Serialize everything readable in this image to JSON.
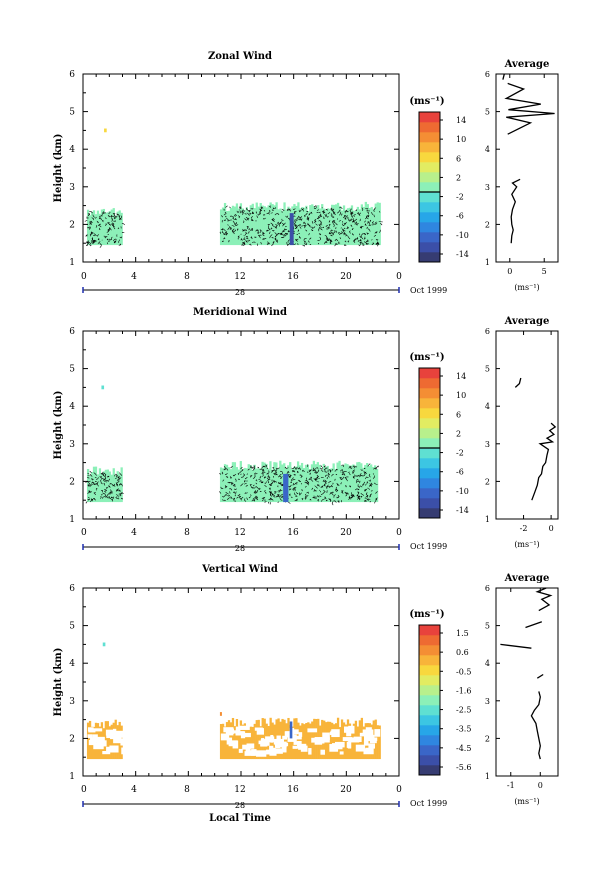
{
  "chart_data": [
    {
      "type": "heatmap",
      "title": "Zonal Wind",
      "ylabel": "Height (km)",
      "ylim": [
        1,
        6
      ],
      "y_ticks": [
        "1",
        "2",
        "3",
        "4",
        "5",
        "6"
      ],
      "xlim": [
        0,
        24
      ],
      "x_ticks": [
        "0",
        "4",
        "8",
        "12",
        "16",
        "20",
        "0"
      ],
      "date_day": "28",
      "date_month": "Oct 1999",
      "colorbar": {
        "unit": "(ms⁻¹)",
        "levels": [
          -14,
          -12,
          -10,
          -8,
          -6,
          -4,
          -2,
          0,
          2,
          4,
          6,
          8,
          10,
          12,
          14,
          16
        ],
        "tick_labels": [
          "14",
          "10",
          "6",
          "2",
          "-2",
          "-6",
          "-10",
          "-14"
        ]
      },
      "data_blocks": [
        {
          "t": [
            0.3,
            3.0
          ],
          "h": [
            1.45,
            2.45
          ],
          "value": 0
        },
        {
          "t": [
            10.4,
            22.6
          ],
          "h": [
            1.45,
            2.6
          ],
          "value": 0
        },
        {
          "t": [
            15.7,
            16.0
          ],
          "h": [
            1.45,
            2.3
          ],
          "value": -11
        },
        {
          "t": [
            1.6,
            1.8
          ],
          "h": [
            4.45,
            4.55
          ],
          "value": 6
        }
      ],
      "average_profile": {
        "title": "Average",
        "xlabel": "(ms⁻¹)",
        "xlim": [
          -2,
          7
        ],
        "x_ticks": [
          "0",
          "5"
        ],
        "ylim": [
          1,
          6
        ],
        "y_ticks": [
          "1",
          "2",
          "3",
          "4",
          "5",
          "6"
        ],
        "segments": [
          [
            [
              0.2,
              1.5
            ],
            [
              0.3,
              1.7
            ],
            [
              0.5,
              1.85
            ],
            [
              0.3,
              2.0
            ],
            [
              0.2,
              2.2
            ],
            [
              0.4,
              2.4
            ],
            [
              0.8,
              2.6
            ],
            [
              0.3,
              2.8
            ],
            [
              1.0,
              3.0
            ],
            [
              0.4,
              3.1
            ],
            [
              1.5,
              3.2
            ]
          ],
          [
            [
              -0.3,
              4.4
            ],
            [
              3.0,
              4.7
            ],
            [
              -0.5,
              4.85
            ],
            [
              6.5,
              4.95
            ],
            [
              -0.2,
              5.05
            ],
            [
              4.5,
              5.2
            ],
            [
              -0.5,
              5.35
            ],
            [
              2.0,
              5.6
            ],
            [
              -0.3,
              5.75
            ]
          ],
          [
            [
              -1.0,
              5.85
            ],
            [
              -0.8,
              6.0
            ]
          ]
        ]
      }
    },
    {
      "type": "heatmap",
      "title": "Meridional Wind",
      "ylabel": "Height (km)",
      "ylim": [
        1,
        6
      ],
      "y_ticks": [
        "1",
        "2",
        "3",
        "4",
        "5",
        "6"
      ],
      "xlim": [
        0,
        24
      ],
      "x_ticks": [
        "0",
        "4",
        "8",
        "12",
        "16",
        "20",
        "0"
      ],
      "date_day": "28",
      "date_month": "Oct 1999",
      "colorbar": {
        "unit": "(ms⁻¹)",
        "levels": [
          -14,
          -12,
          -10,
          -8,
          -6,
          -4,
          -2,
          0,
          2,
          4,
          6,
          8,
          10,
          12,
          14,
          16
        ],
        "tick_labels": [
          "14",
          "10",
          "6",
          "2",
          "-2",
          "-6",
          "-10",
          "-14"
        ]
      },
      "data_blocks": [
        {
          "t": [
            0.3,
            3.0
          ],
          "h": [
            1.45,
            2.4
          ],
          "value": 0
        },
        {
          "t": [
            10.4,
            22.4
          ],
          "h": [
            1.45,
            2.55
          ],
          "value": 0
        },
        {
          "t": [
            15.2,
            15.6
          ],
          "h": [
            1.45,
            2.2
          ],
          "value": -10
        },
        {
          "t": [
            1.4,
            1.6
          ],
          "h": [
            4.45,
            4.55
          ],
          "value": -2
        }
      ],
      "average_profile": {
        "title": "Average",
        "xlabel": "(ms⁻¹)",
        "xlim": [
          -4,
          0.5
        ],
        "x_ticks": [
          "-2",
          "0"
        ],
        "ylim": [
          1,
          6
        ],
        "y_ticks": [
          "1",
          "2",
          "3",
          "4",
          "5",
          "6"
        ],
        "segments": [
          [
            [
              -1.4,
              1.5
            ],
            [
              -1.2,
              1.7
            ],
            [
              -1.0,
              1.9
            ],
            [
              -0.9,
              2.1
            ],
            [
              -0.7,
              2.2
            ],
            [
              -0.6,
              2.4
            ],
            [
              -0.4,
              2.5
            ],
            [
              -0.3,
              2.7
            ],
            [
              -0.2,
              2.85
            ],
            [
              -0.8,
              3.0
            ],
            [
              0.1,
              3.05
            ],
            [
              -0.3,
              3.15
            ],
            [
              0.2,
              3.25
            ],
            [
              -0.1,
              3.35
            ],
            [
              0.3,
              3.45
            ],
            [
              0.0,
              3.55
            ]
          ],
          [
            [
              -2.6,
              4.5
            ],
            [
              -2.3,
              4.6
            ],
            [
              -2.2,
              4.75
            ]
          ]
        ]
      }
    },
    {
      "type": "heatmap",
      "title": "Vertical Wind",
      "ylabel": "Height (km)",
      "ylim": [
        1,
        6
      ],
      "y_ticks": [
        "1",
        "2",
        "3",
        "4",
        "5",
        "6"
      ],
      "xlim": [
        0,
        24
      ],
      "x_ticks": [
        "0",
        "4",
        "8",
        "12",
        "16",
        "20",
        "0"
      ],
      "date_day": "28",
      "date_month": "Oct 1999",
      "xlabel": "Local Time",
      "colorbar": {
        "unit": "(ms⁻¹)",
        "levels": [
          -5.6,
          -5.1,
          -4.6,
          -4.1,
          -3.6,
          -3.1,
          -2.6,
          -2.1,
          -1.6,
          -1.1,
          -0.6,
          -0.1,
          0.4,
          0.9,
          1.4,
          1.9
        ],
        "tick_labels": [
          "1.5",
          "0.6",
          "-0.5",
          "-1.6",
          "-2.5",
          "-3.5",
          "-4.5",
          "-5.6"
        ]
      },
      "data_blocks": [
        {
          "t": [
            0.3,
            3.0
          ],
          "h": [
            1.45,
            2.5
          ],
          "value": 0.3
        },
        {
          "t": [
            10.4,
            22.6
          ],
          "h": [
            1.45,
            2.55
          ],
          "value": 0.3
        },
        {
          "t": [
            15.7,
            15.9
          ],
          "h": [
            2.0,
            2.45
          ],
          "value": -4.5
        },
        {
          "t": [
            1.5,
            1.7
          ],
          "h": [
            4.45,
            4.55
          ],
          "value": -2.3
        },
        {
          "t": [
            10.4,
            10.5
          ],
          "h": [
            2.6,
            2.7
          ],
          "value": 0.6
        }
      ],
      "average_profile": {
        "title": "Average",
        "xlabel": "(ms⁻¹)",
        "xlim": [
          -1.5,
          0.6
        ],
        "x_ticks": [
          "-1",
          "0"
        ],
        "ylim": [
          1,
          6
        ],
        "y_ticks": [
          "1",
          "2",
          "3",
          "4",
          "5",
          "6"
        ],
        "segments": [
          [
            [
              0.0,
              1.45
            ],
            [
              -0.05,
              1.6
            ],
            [
              0.0,
              1.8
            ],
            [
              -0.05,
              2.0
            ],
            [
              -0.1,
              2.2
            ],
            [
              -0.15,
              2.4
            ],
            [
              -0.3,
              2.6
            ],
            [
              -0.2,
              2.75
            ],
            [
              -0.05,
              2.9
            ],
            [
              0.0,
              3.1
            ],
            [
              -0.05,
              3.25
            ]
          ],
          [
            [
              -0.1,
              3.6
            ],
            [
              0.1,
              3.7
            ]
          ],
          [
            [
              -1.35,
              4.5
            ],
            [
              -0.3,
              4.4
            ]
          ],
          [
            [
              -0.5,
              4.95
            ],
            [
              0.05,
              5.1
            ]
          ],
          [
            [
              -0.05,
              5.4
            ],
            [
              0.3,
              5.55
            ],
            [
              0.05,
              5.7
            ],
            [
              0.35,
              5.8
            ],
            [
              -0.1,
              5.9
            ],
            [
              0.2,
              6.0
            ]
          ]
        ]
      }
    }
  ]
}
